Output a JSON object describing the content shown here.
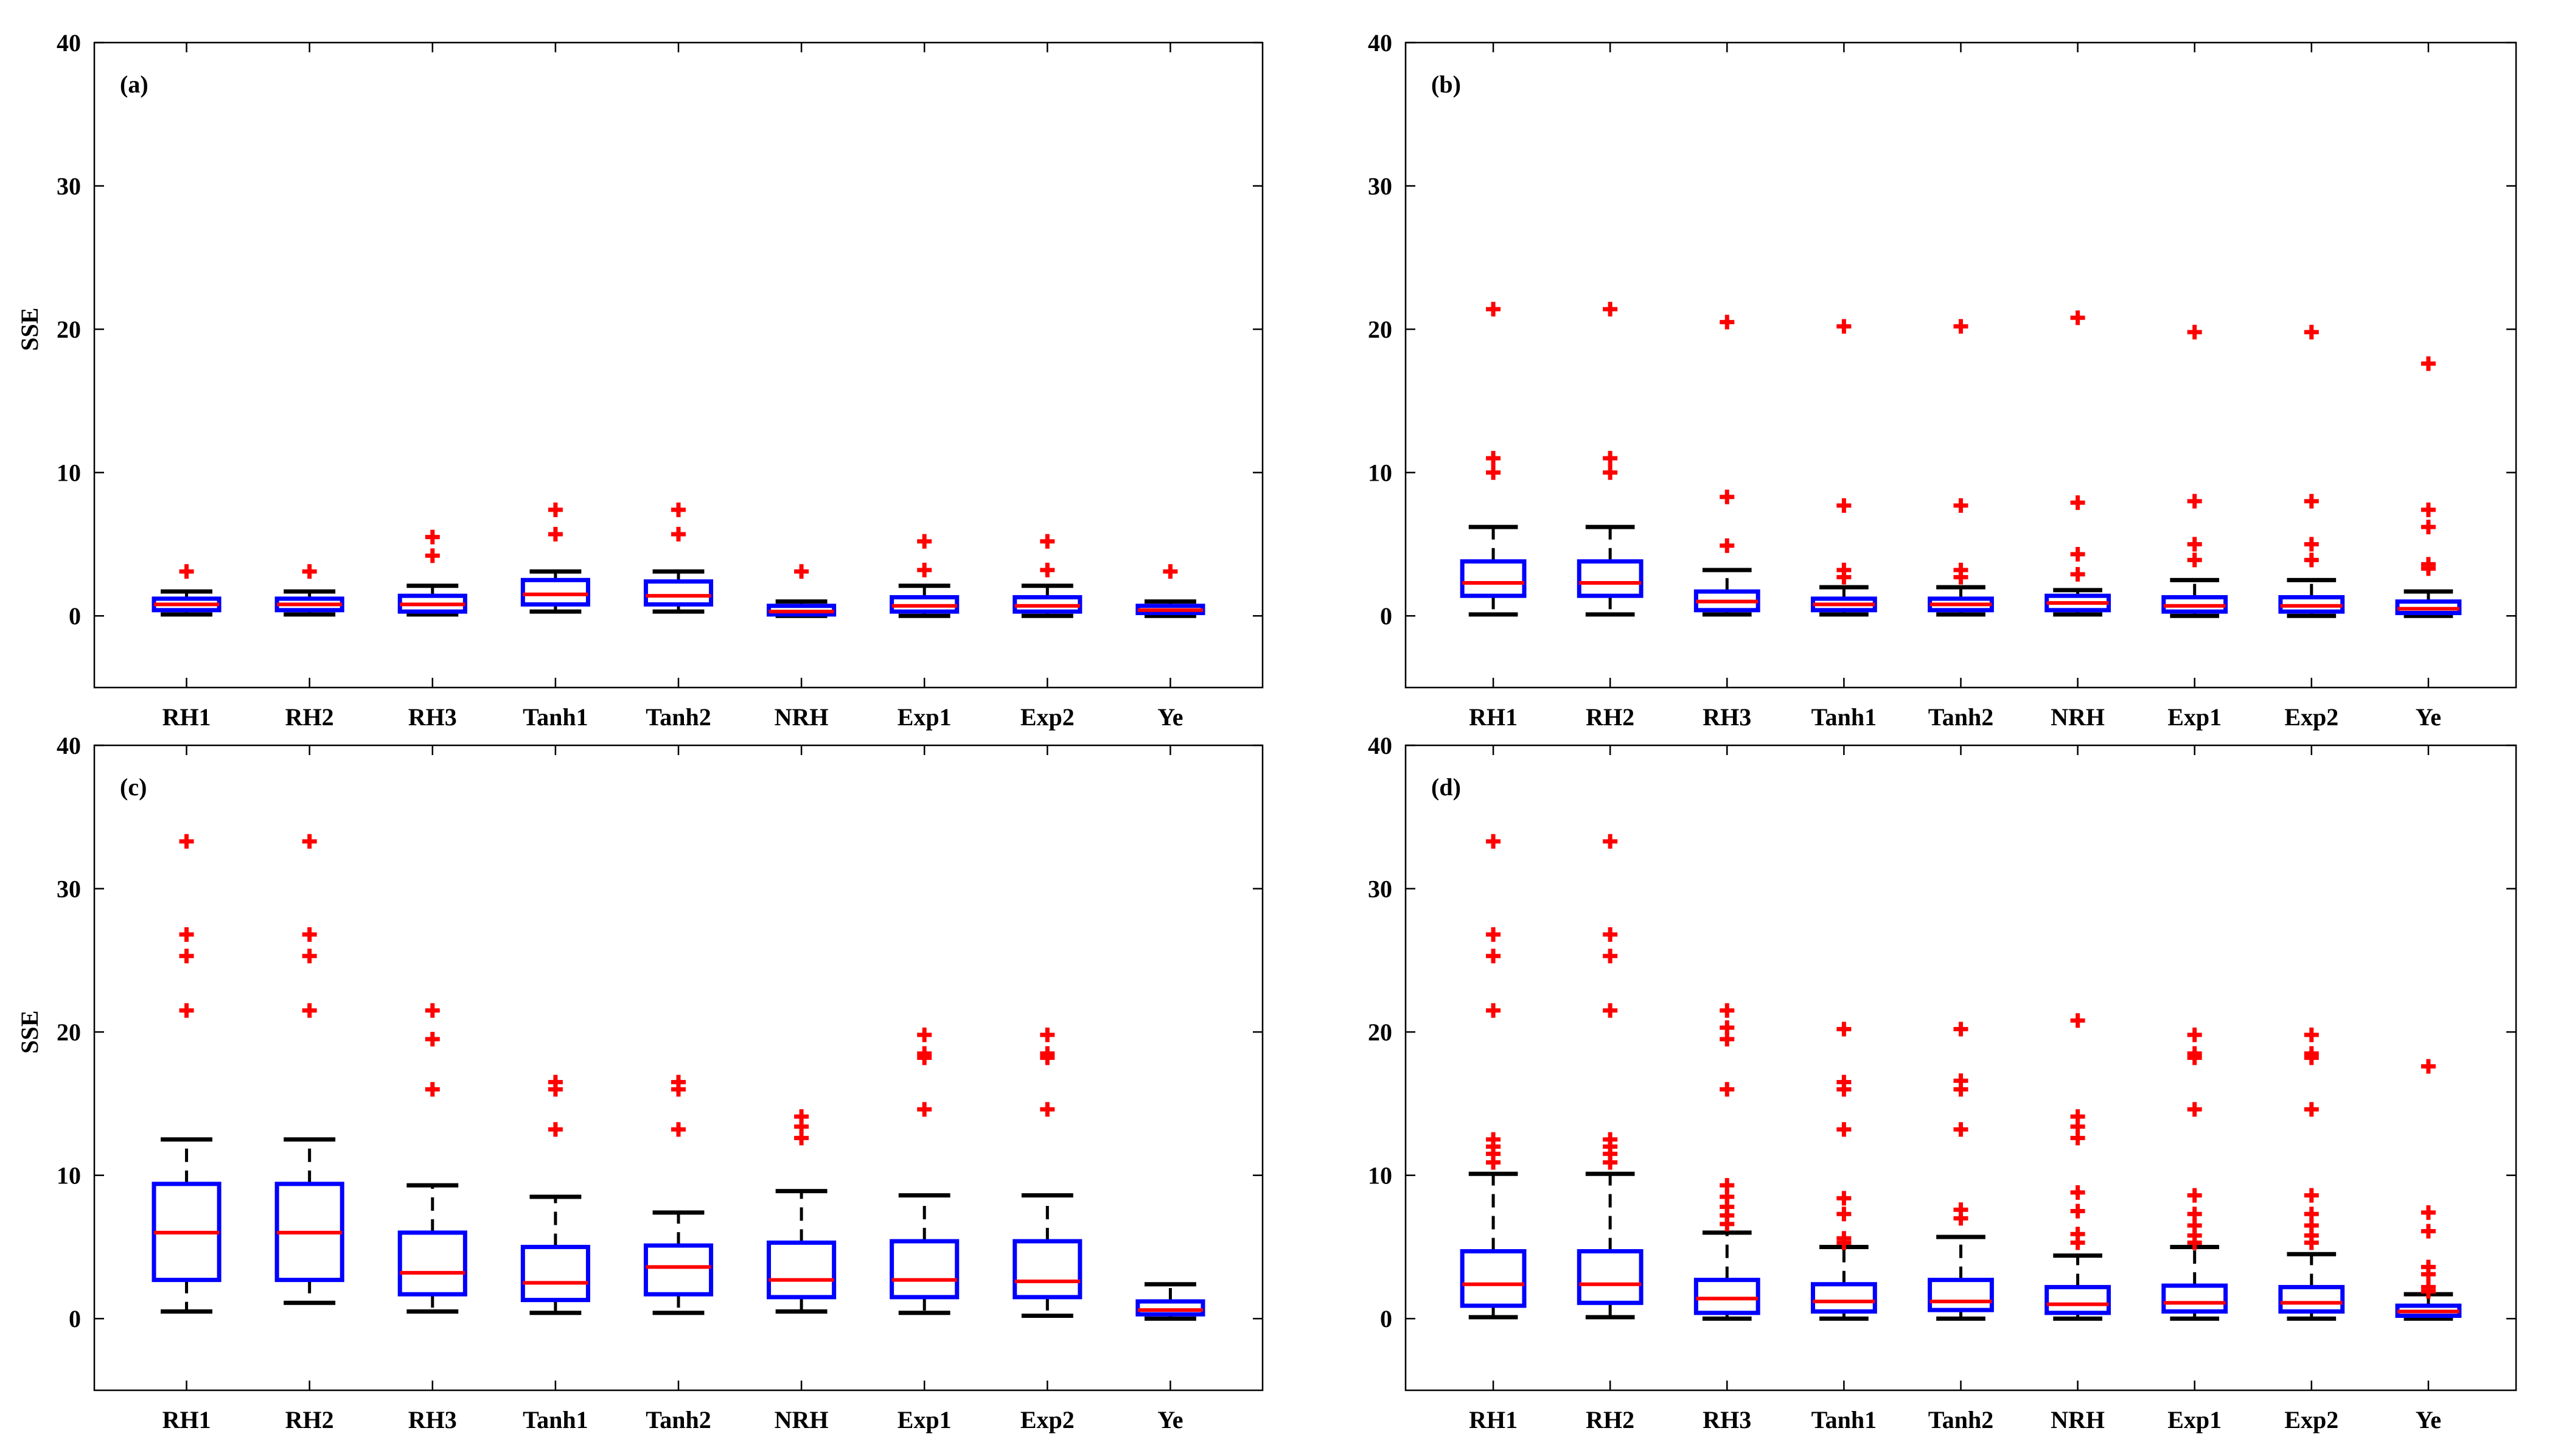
{
  "chart_data": [
    {
      "type": "box",
      "panel": "(a)",
      "ylabel": "SSE",
      "ylim": [
        -5,
        40
      ],
      "yticks": [
        0,
        10,
        20,
        30,
        40
      ],
      "categories": [
        "RH1",
        "RH2",
        "RH3",
        "Tanh1",
        "Tanh2",
        "NRH",
        "Exp1",
        "Exp2",
        "Ye"
      ],
      "boxes": [
        {
          "q1": 0.4,
          "median": 0.8,
          "q3": 1.2,
          "whisker_low": 0.1,
          "whisker_high": 1.7,
          "outliers": [
            3.1
          ]
        },
        {
          "q1": 0.4,
          "median": 0.8,
          "q3": 1.2,
          "whisker_low": 0.1,
          "whisker_high": 1.7,
          "outliers": [
            3.1
          ]
        },
        {
          "q1": 0.3,
          "median": 0.8,
          "q3": 1.4,
          "whisker_low": 0.1,
          "whisker_high": 2.1,
          "outliers": [
            4.2,
            5.5
          ]
        },
        {
          "q1": 0.8,
          "median": 1.5,
          "q3": 2.5,
          "whisker_low": 0.3,
          "whisker_high": 3.1,
          "outliers": [
            5.7,
            7.4
          ]
        },
        {
          "q1": 0.8,
          "median": 1.4,
          "q3": 2.4,
          "whisker_low": 0.3,
          "whisker_high": 3.1,
          "outliers": [
            5.7,
            7.4
          ]
        },
        {
          "q1": 0.1,
          "median": 0.3,
          "q3": 0.7,
          "whisker_low": 0.0,
          "whisker_high": 1.0,
          "outliers": [
            3.1
          ]
        },
        {
          "q1": 0.3,
          "median": 0.7,
          "q3": 1.3,
          "whisker_low": 0.0,
          "whisker_high": 2.1,
          "outliers": [
            3.2,
            5.2
          ]
        },
        {
          "q1": 0.3,
          "median": 0.7,
          "q3": 1.3,
          "whisker_low": 0.0,
          "whisker_high": 2.1,
          "outliers": [
            3.2,
            5.2
          ]
        },
        {
          "q1": 0.2,
          "median": 0.4,
          "q3": 0.7,
          "whisker_low": 0.0,
          "whisker_high": 1.0,
          "outliers": [
            3.1
          ]
        }
      ]
    },
    {
      "type": "box",
      "panel": "(b)",
      "ylabel": "",
      "ylim": [
        -5,
        40
      ],
      "yticks": [
        0,
        10,
        20,
        30,
        40
      ],
      "categories": [
        "RH1",
        "RH2",
        "RH3",
        "Tanh1",
        "Tanh2",
        "NRH",
        "Exp1",
        "Exp2",
        "Ye"
      ],
      "boxes": [
        {
          "q1": 1.4,
          "median": 2.3,
          "q3": 3.8,
          "whisker_low": 0.1,
          "whisker_high": 6.2,
          "outliers": [
            10.0,
            11.0,
            21.4
          ]
        },
        {
          "q1": 1.4,
          "median": 2.3,
          "q3": 3.8,
          "whisker_low": 0.1,
          "whisker_high": 6.2,
          "outliers": [
            10.0,
            11.0,
            21.4
          ]
        },
        {
          "q1": 0.4,
          "median": 1.0,
          "q3": 1.7,
          "whisker_low": 0.1,
          "whisker_high": 3.2,
          "outliers": [
            4.9,
            8.3,
            20.5
          ]
        },
        {
          "q1": 0.4,
          "median": 0.8,
          "q3": 1.2,
          "whisker_low": 0.1,
          "whisker_high": 2.0,
          "outliers": [
            2.7,
            3.2,
            7.7,
            20.2
          ]
        },
        {
          "q1": 0.4,
          "median": 0.8,
          "q3": 1.2,
          "whisker_low": 0.1,
          "whisker_high": 2.0,
          "outliers": [
            2.7,
            3.2,
            7.7,
            20.2
          ]
        },
        {
          "q1": 0.4,
          "median": 0.9,
          "q3": 1.4,
          "whisker_low": 0.1,
          "whisker_high": 1.8,
          "outliers": [
            2.9,
            4.3,
            7.9,
            20.8
          ]
        },
        {
          "q1": 0.3,
          "median": 0.7,
          "q3": 1.3,
          "whisker_low": 0.0,
          "whisker_high": 2.5,
          "outliers": [
            3.9,
            5.0,
            8.0,
            19.8
          ]
        },
        {
          "q1": 0.3,
          "median": 0.7,
          "q3": 1.3,
          "whisker_low": 0.0,
          "whisker_high": 2.5,
          "outliers": [
            3.9,
            5.0,
            8.0,
            19.8
          ]
        },
        {
          "q1": 0.2,
          "median": 0.5,
          "q3": 1.0,
          "whisker_low": 0.0,
          "whisker_high": 1.7,
          "outliers": [
            3.3,
            3.6,
            6.2,
            7.4,
            17.6
          ]
        }
      ]
    },
    {
      "type": "box",
      "panel": "(c)",
      "ylabel": "SSE",
      "ylim": [
        -5,
        40
      ],
      "yticks": [
        0,
        10,
        20,
        30,
        40
      ],
      "categories": [
        "RH1",
        "RH2",
        "RH3",
        "Tanh1",
        "Tanh2",
        "NRH",
        "Exp1",
        "Exp2",
        "Ye"
      ],
      "boxes": [
        {
          "q1": 2.7,
          "median": 6.0,
          "q3": 9.4,
          "whisker_low": 0.5,
          "whisker_high": 12.5,
          "outliers": [
            21.5,
            25.3,
            26.8,
            33.3
          ]
        },
        {
          "q1": 2.7,
          "median": 6.0,
          "q3": 9.4,
          "whisker_low": 1.1,
          "whisker_high": 12.5,
          "outliers": [
            21.5,
            25.3,
            26.8,
            33.3
          ]
        },
        {
          "q1": 1.7,
          "median": 3.2,
          "q3": 6.0,
          "whisker_low": 0.5,
          "whisker_high": 9.3,
          "outliers": [
            16.0,
            19.5,
            21.5
          ]
        },
        {
          "q1": 1.3,
          "median": 2.5,
          "q3": 5.0,
          "whisker_low": 0.4,
          "whisker_high": 8.5,
          "outliers": [
            13.2,
            16.0,
            16.5
          ]
        },
        {
          "q1": 1.7,
          "median": 3.6,
          "q3": 5.1,
          "whisker_low": 0.4,
          "whisker_high": 7.4,
          "outliers": [
            13.2,
            16.0,
            16.5
          ]
        },
        {
          "q1": 1.5,
          "median": 2.7,
          "q3": 5.3,
          "whisker_low": 0.5,
          "whisker_high": 8.9,
          "outliers": [
            12.6,
            13.4,
            14.1
          ]
        },
        {
          "q1": 1.5,
          "median": 2.7,
          "q3": 5.4,
          "whisker_low": 0.4,
          "whisker_high": 8.6,
          "outliers": [
            14.6,
            18.2,
            18.5,
            19.8
          ]
        },
        {
          "q1": 1.5,
          "median": 2.6,
          "q3": 5.4,
          "whisker_low": 0.2,
          "whisker_high": 8.6,
          "outliers": [
            14.6,
            18.2,
            18.5,
            19.8
          ]
        },
        {
          "q1": 0.3,
          "median": 0.6,
          "q3": 1.2,
          "whisker_low": 0.0,
          "whisker_high": 2.4,
          "outliers": []
        }
      ]
    },
    {
      "type": "box",
      "panel": "(d)",
      "ylabel": "",
      "ylim": [
        -5,
        40
      ],
      "yticks": [
        0,
        10,
        20,
        30,
        40
      ],
      "categories": [
        "RH1",
        "RH2",
        "RH3",
        "Tanh1",
        "Tanh2",
        "NRH",
        "Exp1",
        "Exp2",
        "Ye"
      ],
      "boxes": [
        {
          "q1": 0.9,
          "median": 2.4,
          "q3": 4.7,
          "whisker_low": 0.1,
          "whisker_high": 10.1,
          "outliers": [
            10.9,
            11.5,
            12.0,
            12.5,
            21.5,
            25.3,
            26.8,
            33.3
          ]
        },
        {
          "q1": 1.1,
          "median": 2.4,
          "q3": 4.7,
          "whisker_low": 0.1,
          "whisker_high": 10.1,
          "outliers": [
            10.9,
            11.5,
            12.0,
            12.5,
            21.5,
            25.3,
            26.8,
            33.3
          ]
        },
        {
          "q1": 0.4,
          "median": 1.4,
          "q3": 2.7,
          "whisker_low": 0.0,
          "whisker_high": 6.0,
          "outliers": [
            6.6,
            7.2,
            7.8,
            8.5,
            9.3,
            16.0,
            19.5,
            20.3,
            21.5
          ]
        },
        {
          "q1": 0.5,
          "median": 1.2,
          "q3": 2.4,
          "whisker_low": 0.0,
          "whisker_high": 5.0,
          "outliers": [
            5.3,
            5.6,
            7.3,
            8.4,
            13.2,
            16.0,
            16.5,
            20.2
          ]
        },
        {
          "q1": 0.6,
          "median": 1.2,
          "q3": 2.7,
          "whisker_low": 0.0,
          "whisker_high": 5.7,
          "outliers": [
            7.0,
            7.6,
            13.2,
            16.0,
            16.6,
            20.2
          ]
        },
        {
          "q1": 0.4,
          "median": 1.0,
          "q3": 2.2,
          "whisker_low": 0.0,
          "whisker_high": 4.4,
          "outliers": [
            5.3,
            5.9,
            7.5,
            8.8,
            12.6,
            13.4,
            14.1,
            20.8
          ]
        },
        {
          "q1": 0.5,
          "median": 1.1,
          "q3": 2.3,
          "whisker_low": 0.0,
          "whisker_high": 5.0,
          "outliers": [
            5.3,
            5.8,
            6.5,
            7.3,
            8.6,
            14.6,
            18.2,
            18.5,
            19.8
          ]
        },
        {
          "q1": 0.5,
          "median": 1.1,
          "q3": 2.2,
          "whisker_low": 0.0,
          "whisker_high": 4.5,
          "outliers": [
            5.3,
            5.8,
            6.5,
            7.3,
            8.6,
            14.6,
            18.2,
            18.5,
            19.8
          ]
        },
        {
          "q1": 0.2,
          "median": 0.5,
          "q3": 0.9,
          "whisker_low": 0.0,
          "whisker_high": 1.7,
          "outliers": [
            1.9,
            2.2,
            3.1,
            3.6,
            6.1,
            7.4,
            17.6
          ]
        }
      ]
    }
  ],
  "colors": {
    "box": "#0000ff",
    "median": "#ff0000",
    "outlier": "#ff0000",
    "whisker": "#000000",
    "axes": "#000000"
  }
}
